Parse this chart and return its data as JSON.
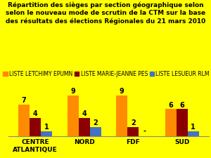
{
  "title": "Répartition des sièges par section géographique selon\nselon le nouveau mode de scrutin de la CTM sur la base\ndes résultats des élections Régionales du 21 mars 2010",
  "categories": [
    "CENTRE\nATLANTIQUE",
    "NORD",
    "FDF",
    "SUD"
  ],
  "series": {
    "LISTE LETCHIMY EPUMN": [
      7,
      9,
      9,
      6
    ],
    "LISTE MARIE-JEANNE PES": [
      4,
      4,
      2,
      6
    ],
    "LISTE LESUEUR RLM": [
      1,
      2,
      0,
      1
    ]
  },
  "colors": {
    "LISTE LETCHIMY EPUMN": "#FF8C00",
    "LISTE MARIE-JEANNE PES": "#8B0000",
    "LISTE LESUEUR RLM": "#4472C4"
  },
  "background_color": "#FFFF00",
  "ylim": [
    0,
    11.0
  ],
  "bar_width": 0.23,
  "title_fontsize": 6.5,
  "legend_fontsize": 5.5,
  "tick_fontsize": 6.5,
  "label_fontsize": 7,
  "fdf_blue_label": "-"
}
